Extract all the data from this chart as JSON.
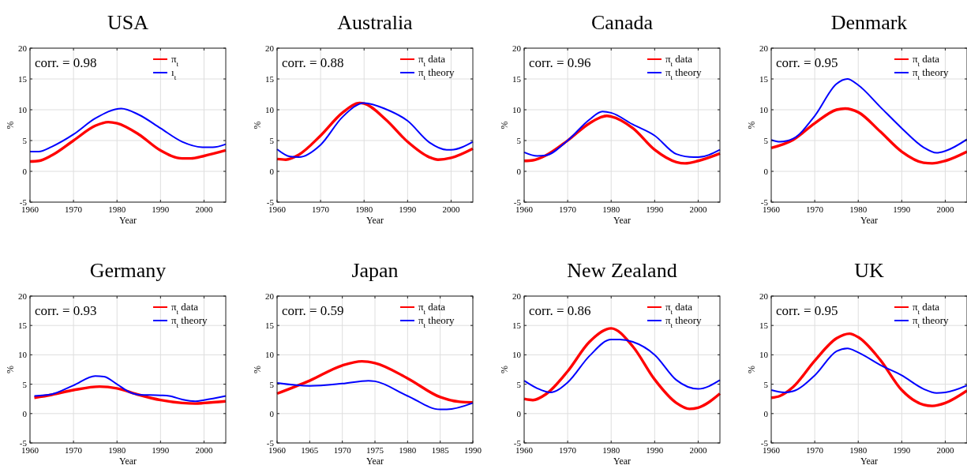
{
  "chart_data": [
    {
      "type": "line",
      "title": "USA",
      "xlabel": "Year",
      "ylabel": "%",
      "xlim": [
        1960,
        2005
      ],
      "xticks": [
        1960,
        1970,
        1980,
        1990,
        2000
      ],
      "ylim": [
        -5,
        20
      ],
      "yticks": [
        -5,
        0,
        5,
        10,
        15,
        20
      ],
      "grid": true,
      "legend": "top right",
      "annotations": [
        "corr. = 0.98"
      ],
      "series": [
        {
          "name": "π$_{t}$",
          "color": "#ff0000",
          "x": [
            1960,
            1962,
            1965,
            1970,
            1975,
            1978,
            1980,
            1985,
            1990,
            1995,
            1997,
            2000,
            2005
          ],
          "values": [
            1.6,
            1.7,
            2.6,
            5.0,
            7.4,
            8.0,
            7.8,
            6.0,
            3.4,
            2.1,
            2.1,
            2.5,
            3.4
          ]
        },
        {
          "name": "ı$_{t}$",
          "color": "#0000ff",
          "x": [
            1960,
            1962,
            1965,
            1970,
            1975,
            1981,
            1985,
            1990,
            1995,
            2000,
            2002,
            2005
          ],
          "values": [
            3.2,
            3.2,
            4.0,
            6.0,
            8.6,
            10.2,
            9.2,
            7.0,
            4.8,
            3.9,
            3.9,
            4.4
          ]
        }
      ]
    },
    {
      "type": "line",
      "title": "Australia",
      "xlabel": "Year",
      "ylabel": "%",
      "xlim": [
        1960,
        2005
      ],
      "xticks": [
        1960,
        1970,
        1980,
        1990,
        2000
      ],
      "ylim": [
        -5,
        20
      ],
      "yticks": [
        -5,
        0,
        5,
        10,
        15,
        20
      ],
      "grid": true,
      "legend": "top right",
      "annotations": [
        "corr. = 0.88"
      ],
      "series": [
        {
          "name": "π$_{t}$ data",
          "color": "#ff0000",
          "x": [
            1960,
            1962,
            1965,
            1970,
            1975,
            1979,
            1980,
            1985,
            1990,
            1995,
            1997,
            2000,
            2005
          ],
          "values": [
            2.0,
            1.9,
            2.7,
            5.8,
            9.5,
            11.1,
            11.0,
            8.4,
            4.8,
            2.3,
            1.9,
            2.2,
            3.7
          ]
        },
        {
          "name": "π$_{t}$ theory",
          "color": "#0000ff",
          "x": [
            1960,
            1963,
            1965,
            1970,
            1975,
            1980,
            1985,
            1990,
            1995,
            1999,
            2000,
            2005
          ],
          "values": [
            3.6,
            2.4,
            2.3,
            4.3,
            8.8,
            11.1,
            10.1,
            8.2,
            4.7,
            3.5,
            3.5,
            4.8
          ]
        }
      ]
    },
    {
      "type": "line",
      "title": "Canada",
      "xlabel": "Year",
      "ylabel": "%",
      "xlim": [
        1960,
        2005
      ],
      "xticks": [
        1960,
        1970,
        1980,
        1990,
        2000
      ],
      "ylim": [
        -5,
        20
      ],
      "yticks": [
        -5,
        0,
        5,
        10,
        15,
        20
      ],
      "grid": true,
      "legend": "top right",
      "annotations": [
        "corr. = 0.96"
      ],
      "series": [
        {
          "name": "π$_{t}$ data",
          "color": "#ff0000",
          "x": [
            1960,
            1962,
            1965,
            1970,
            1975,
            1979,
            1980,
            1985,
            1990,
            1995,
            1997,
            2000,
            2005
          ],
          "values": [
            1.7,
            1.8,
            2.6,
            5.0,
            7.8,
            9.0,
            8.9,
            7.0,
            3.5,
            1.5,
            1.3,
            1.7,
            2.9
          ]
        },
        {
          "name": "π$_{t}$ theory",
          "color": "#0000ff",
          "x": [
            1960,
            1963,
            1965,
            1970,
            1975,
            1978,
            1980,
            1985,
            1990,
            1995,
            1999,
            2000,
            2005
          ],
          "values": [
            3.1,
            2.5,
            2.6,
            5.0,
            8.4,
            9.7,
            9.5,
            7.6,
            5.8,
            2.8,
            2.3,
            2.3,
            3.5
          ]
        }
      ]
    },
    {
      "type": "line",
      "title": "Denmark",
      "xlabel": "Year",
      "ylabel": "%",
      "xlim": [
        1960,
        2005
      ],
      "xticks": [
        1960,
        1970,
        1980,
        1990,
        2000
      ],
      "ylim": [
        -5,
        20
      ],
      "yticks": [
        -5,
        0,
        5,
        10,
        15,
        20
      ],
      "grid": true,
      "legend": "top right",
      "annotations": [
        "corr. = 0.95"
      ],
      "series": [
        {
          "name": "π$_{t}$ data",
          "color": "#ff0000",
          "x": [
            1960,
            1965,
            1970,
            1975,
            1977,
            1980,
            1985,
            1990,
            1995,
            1997,
            2000,
            2005
          ],
          "values": [
            3.8,
            5.1,
            7.8,
            10.0,
            10.2,
            9.6,
            6.5,
            3.2,
            1.4,
            1.3,
            1.7,
            3.2
          ]
        },
        {
          "name": "π$_{t}$ theory",
          "color": "#0000ff",
          "x": [
            1960,
            1962,
            1965,
            1970,
            1975,
            1977.5,
            1980,
            1985,
            1990,
            1995,
            1998,
            2000,
            2005
          ],
          "values": [
            5.1,
            4.8,
            5.3,
            9.0,
            14.2,
            15.0,
            14.0,
            10.5,
            7.0,
            3.9,
            3.0,
            3.3,
            5.2
          ]
        }
      ]
    },
    {
      "type": "line",
      "title": "Germany",
      "xlabel": "Year",
      "ylabel": "%",
      "xlim": [
        1960,
        2005
      ],
      "xticks": [
        1960,
        1970,
        1980,
        1990,
        2000
      ],
      "ylim": [
        -5,
        20
      ],
      "yticks": [
        -5,
        0,
        5,
        10,
        15,
        20
      ],
      "grid": true,
      "legend": "top right",
      "annotations": [
        "corr. = 0.93"
      ],
      "series": [
        {
          "name": "π$_{t}$ data",
          "color": "#ff0000",
          "x": [
            1961,
            1965,
            1970,
            1976,
            1980,
            1985,
            1990,
            1995,
            1998,
            2000,
            2005
          ],
          "values": [
            2.7,
            3.2,
            4.0,
            4.6,
            4.3,
            3.2,
            2.3,
            1.8,
            1.7,
            1.8,
            2.1
          ]
        },
        {
          "name": "π$_{t}$ theory",
          "color": "#0000ff",
          "x": [
            1961,
            1965,
            1970,
            1975,
            1977,
            1980,
            1983,
            1985,
            1990,
            1992,
            1995,
            1998,
            2000,
            2005
          ],
          "values": [
            3.0,
            3.3,
            4.8,
            6.4,
            6.3,
            5.0,
            3.6,
            3.2,
            3.1,
            3.0,
            2.4,
            2.1,
            2.3,
            3.0
          ]
        }
      ]
    },
    {
      "type": "line",
      "title": "Japan",
      "xlabel": "Year",
      "ylabel": "%",
      "xlim": [
        1960,
        1990
      ],
      "xticks": [
        1960,
        1965,
        1970,
        1975,
        1980,
        1985,
        1990
      ],
      "ylim": [
        -5,
        20
      ],
      "yticks": [
        -5,
        0,
        5,
        10,
        15,
        20
      ],
      "grid": true,
      "legend": "top right",
      "annotations": [
        "corr. = 0.59"
      ],
      "series": [
        {
          "name": "π$_{t}$ data",
          "color": "#ff0000",
          "x": [
            1960,
            1965,
            1970,
            1973,
            1975,
            1980,
            1985,
            1988,
            1990
          ],
          "values": [
            3.4,
            5.6,
            8.2,
            8.9,
            8.6,
            6.0,
            2.8,
            2.0,
            1.9
          ]
        },
        {
          "name": "π$_{t}$ theory",
          "color": "#0000ff",
          "x": [
            1960,
            1965,
            1970,
            1974,
            1975,
            1980,
            1985,
            1986,
            1990
          ],
          "values": [
            5.2,
            4.7,
            5.1,
            5.6,
            5.5,
            3.0,
            0.7,
            0.7,
            1.8
          ]
        }
      ]
    },
    {
      "type": "line",
      "title": "New Zealand",
      "xlabel": "Year",
      "ylabel": "%",
      "xlim": [
        1960,
        2005
      ],
      "xticks": [
        1960,
        1970,
        1980,
        1990,
        2000
      ],
      "ylim": [
        -5,
        20
      ],
      "yticks": [
        -5,
        0,
        5,
        10,
        15,
        20
      ],
      "grid": true,
      "legend": "top right",
      "annotations": [
        "corr. = 0.86"
      ],
      "series": [
        {
          "name": "π$_{t}$ data",
          "color": "#ff0000",
          "x": [
            1960,
            1962,
            1965,
            1970,
            1975,
            1980,
            1985,
            1990,
            1995,
            1998,
            2000,
            2005
          ],
          "values": [
            2.5,
            2.3,
            3.3,
            7.2,
            12.2,
            14.5,
            11.4,
            5.8,
            1.8,
            0.8,
            1.0,
            3.4
          ]
        },
        {
          "name": "π$_{t}$ theory",
          "color": "#0000ff",
          "x": [
            1960,
            1963,
            1966,
            1970,
            1975,
            1980,
            1982,
            1985,
            1990,
            1995,
            2000,
            2005
          ],
          "values": [
            5.6,
            4.3,
            3.6,
            5.3,
            9.8,
            12.6,
            12.6,
            12.2,
            10.0,
            5.7,
            4.2,
            5.7
          ]
        }
      ]
    },
    {
      "type": "line",
      "title": "UK",
      "xlabel": "Year",
      "ylabel": "%",
      "xlim": [
        1960,
        2005
      ],
      "xticks": [
        1960,
        1970,
        1980,
        1990,
        2000
      ],
      "ylim": [
        -5,
        20
      ],
      "yticks": [
        -5,
        0,
        5,
        10,
        15,
        20
      ],
      "grid": true,
      "legend": "top right",
      "annotations": [
        "corr. = 0.95"
      ],
      "series": [
        {
          "name": "π$_{t}$ data",
          "color": "#ff0000",
          "x": [
            1960,
            1962,
            1965,
            1970,
            1975,
            1978,
            1980,
            1985,
            1990,
            1995,
            1997,
            2000,
            2005
          ],
          "values": [
            2.7,
            3.0,
            4.5,
            9.0,
            12.8,
            13.6,
            13.0,
            9.2,
            4.0,
            1.5,
            1.3,
            1.8,
            3.9
          ]
        },
        {
          "name": "π$_{t}$ theory",
          "color": "#0000ff",
          "x": [
            1960,
            1963,
            1965,
            1970,
            1975,
            1977.5,
            1980,
            1985,
            1990,
            1995,
            1998,
            2000,
            2005
          ],
          "values": [
            4.0,
            3.6,
            3.8,
            6.5,
            10.6,
            11.1,
            10.4,
            8.3,
            6.5,
            4.2,
            3.5,
            3.6,
            4.8
          ]
        }
      ]
    }
  ]
}
